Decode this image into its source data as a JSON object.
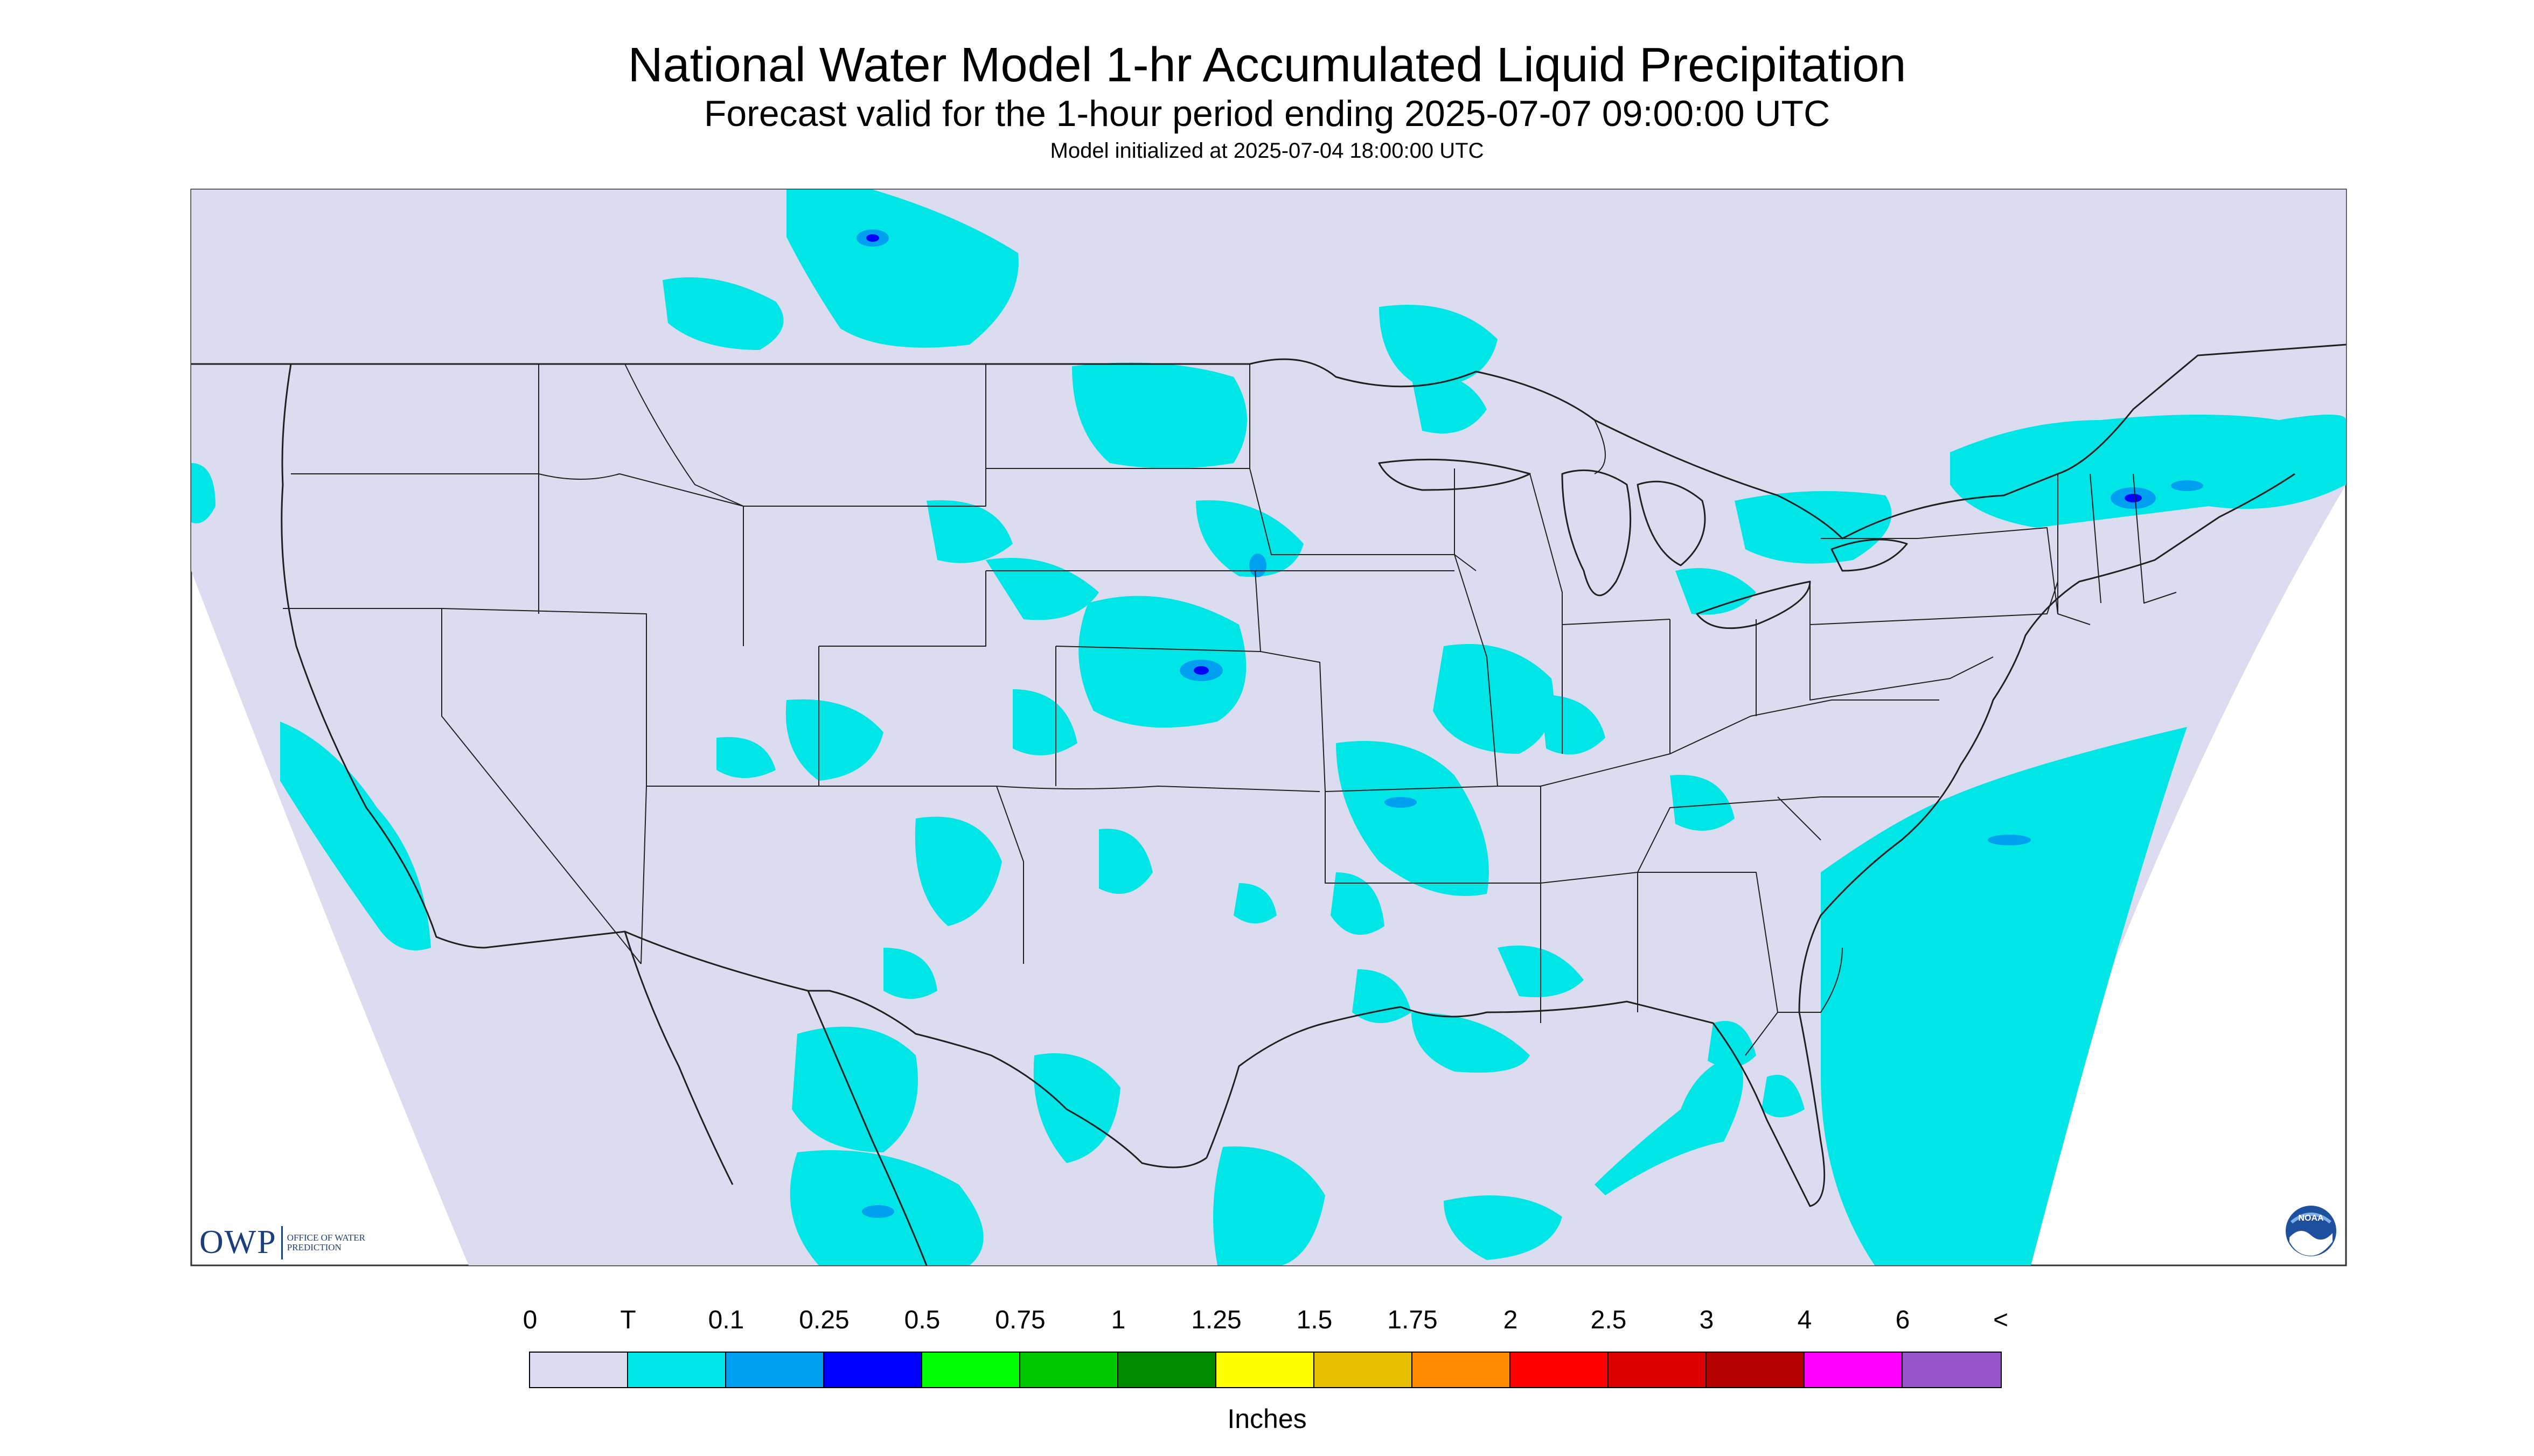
{
  "title": "National Water Model 1-hr Accumulated Liquid Precipitation",
  "subtitle": "Forecast valid for the 1-hour period ending 2025-07-07 09:00:00 UTC",
  "init_line": "Model initialized at 2025-07-04 18:00:00 UTC",
  "colors": {
    "background": "#dcdcf0",
    "precip_trace": "#00e5e5",
    "map_lines": "#202020"
  },
  "logos": {
    "owp_letters": "OWP",
    "owp_subtitle": "OFFICE OF WATER PREDICTION",
    "noaa_icon": "noaa-logo-icon",
    "noaa_text": "NOAA"
  },
  "legend": {
    "tick_labels": [
      "0",
      "T",
      "0.1",
      "0.25",
      "0.5",
      "0.75",
      "1",
      "1.25",
      "1.5",
      "1.75",
      "2",
      "2.5",
      "3",
      "4",
      "6",
      "<"
    ],
    "colors": [
      "#dcdcf0",
      "#00e5e5",
      "#00a0f0",
      "#0000ff",
      "#00ff00",
      "#00c800",
      "#008c00",
      "#ffff00",
      "#e6be00",
      "#ff8c00",
      "#ff0000",
      "#dc0000",
      "#b40000",
      "#ff00ff",
      "#9955cc"
    ],
    "units": "Inches"
  }
}
